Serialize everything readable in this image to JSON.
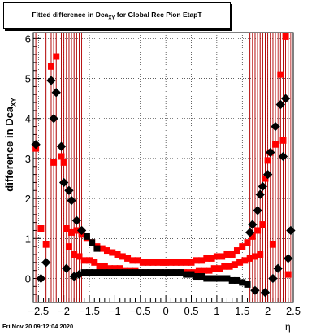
{
  "chart_data": {
    "type": "scatter",
    "title_main": "Fitted difference in Dca",
    "title_sub": "XY",
    "title_rest": " for Global Rec Pion EtapT",
    "xlabel": "η",
    "ylabel_main": "difference in Dca",
    "ylabel_sub": "XY",
    "xlim": [
      -2.6,
      2.5
    ],
    "ylim": [
      -0.6,
      6.15
    ],
    "x_ticks": [
      -2.5,
      -2,
      -1.5,
      -1,
      -0.5,
      0,
      0.5,
      1,
      1.5,
      2,
      2.5
    ],
    "x_tick_labels": [
      "−2.5",
      "−2",
      "−1.5",
      "−1",
      "−0.5",
      "0",
      "0.5",
      "1",
      "1.5",
      "2",
      "2.5"
    ],
    "y_ticks": [
      0,
      1,
      2,
      3,
      4,
      5,
      6
    ],
    "y_tick_labels": [
      "0",
      "1",
      "2",
      "3",
      "4",
      "5",
      "6"
    ],
    "grid": true,
    "series": [
      {
        "color": "#ff0000",
        "points": [
          [
            -2.55,
            3.25
          ],
          [
            -2.45,
            1.25
          ],
          [
            -2.35,
            0.85
          ],
          [
            -2.25,
            5.3
          ],
          [
            -2.2,
            2.9
          ],
          [
            -2.15,
            5.55
          ],
          [
            -2.05,
            3.05
          ],
          [
            -2.0,
            2.9
          ],
          [
            -1.95,
            1.25
          ],
          [
            -1.9,
            0.8
          ],
          [
            -1.85,
            1.15
          ],
          [
            -1.8,
            0.6
          ],
          [
            -1.75,
            1.2
          ],
          [
            -1.7,
            0.55
          ],
          [
            -1.65,
            1.1
          ],
          [
            -1.6,
            0.45
          ],
          [
            -1.55,
            1.0
          ],
          [
            -1.5,
            0.45
          ],
          [
            -1.45,
            0.9
          ],
          [
            -1.4,
            0.4
          ],
          [
            -1.35,
            0.8
          ],
          [
            -1.3,
            0.3
          ],
          [
            -1.25,
            0.75
          ],
          [
            -1.2,
            0.3
          ],
          [
            -1.15,
            0.7
          ],
          [
            -1.1,
            0.25
          ],
          [
            -1.05,
            0.65
          ],
          [
            -1.0,
            0.25
          ],
          [
            -0.95,
            0.6
          ],
          [
            -0.9,
            0.25
          ],
          [
            -0.85,
            0.55
          ],
          [
            -0.8,
            0.2
          ],
          [
            -0.75,
            0.5
          ],
          [
            -0.7,
            0.2
          ],
          [
            -0.65,
            0.45
          ],
          [
            -0.6,
            0.2
          ],
          [
            -0.55,
            0.45
          ],
          [
            -0.5,
            0.15
          ],
          [
            -0.45,
            0.4
          ],
          [
            -0.4,
            0.15
          ],
          [
            -0.35,
            0.4
          ],
          [
            -0.3,
            0.15
          ],
          [
            -0.25,
            0.4
          ],
          [
            -0.2,
            0.15
          ],
          [
            -0.15,
            0.4
          ],
          [
            -0.1,
            0.15
          ],
          [
            -0.05,
            0.4
          ],
          [
            0.0,
            0.4
          ],
          [
            0.05,
            0.15
          ],
          [
            0.1,
            0.4
          ],
          [
            0.15,
            0.15
          ],
          [
            0.2,
            0.4
          ],
          [
            0.25,
            0.15
          ],
          [
            0.3,
            0.4
          ],
          [
            0.35,
            0.15
          ],
          [
            0.4,
            0.4
          ],
          [
            0.45,
            0.15
          ],
          [
            0.5,
            0.4
          ],
          [
            0.55,
            0.15
          ],
          [
            0.6,
            0.45
          ],
          [
            0.65,
            0.2
          ],
          [
            0.7,
            0.45
          ],
          [
            0.75,
            0.2
          ],
          [
            0.8,
            0.5
          ],
          [
            0.85,
            0.2
          ],
          [
            0.9,
            0.5
          ],
          [
            0.95,
            0.25
          ],
          [
            1.0,
            0.55
          ],
          [
            1.05,
            0.25
          ],
          [
            1.1,
            0.55
          ],
          [
            1.15,
            0.3
          ],
          [
            1.2,
            0.6
          ],
          [
            1.25,
            0.3
          ],
          [
            1.3,
            0.6
          ],
          [
            1.35,
            0.35
          ],
          [
            1.4,
            0.7
          ],
          [
            1.45,
            0.4
          ],
          [
            1.5,
            0.8
          ],
          [
            1.55,
            0.45
          ],
          [
            1.6,
            0.9
          ],
          [
            1.65,
            0.5
          ],
          [
            1.7,
            1.05
          ],
          [
            1.75,
            0.55
          ],
          [
            1.8,
            1.2
          ],
          [
            1.85,
            0.6
          ],
          [
            1.9,
            1.35
          ],
          [
            1.95,
            2.5
          ],
          [
            2.0,
            2.95
          ],
          [
            2.05,
            3.15
          ],
          [
            2.1,
            0.85
          ],
          [
            2.15,
            3.35
          ],
          [
            2.25,
            5.1
          ],
          [
            2.3,
            3.45
          ],
          [
            2.35,
            6.05
          ],
          [
            2.4,
            0.1
          ]
        ]
      },
      {
        "color": "#000000",
        "points": [
          [
            -2.55,
            3.35
          ],
          [
            -2.45,
            0.0
          ],
          [
            -2.35,
            0.4
          ],
          [
            -2.25,
            4.95
          ],
          [
            -2.2,
            4.0
          ],
          [
            -2.15,
            4.65
          ],
          [
            -2.05,
            3.3
          ],
          [
            -2.0,
            2.4
          ],
          [
            -1.95,
            0.25
          ],
          [
            -1.9,
            2.2
          ],
          [
            -1.85,
            1.95
          ],
          [
            -1.8,
            0.05
          ],
          [
            -1.75,
            1.45
          ],
          [
            -1.7,
            0.1
          ],
          [
            -1.65,
            1.2
          ],
          [
            -1.6,
            0.15
          ],
          [
            -1.55,
            1.05
          ],
          [
            -1.5,
            0.15
          ],
          [
            -1.45,
            0.9
          ],
          [
            -1.4,
            0.15
          ],
          [
            -1.35,
            0.75
          ],
          [
            -1.3,
            0.15
          ],
          [
            -1.2,
            0.15
          ],
          [
            -1.1,
            0.15
          ],
          [
            -1.0,
            0.15
          ],
          [
            -0.9,
            0.15
          ],
          [
            -0.8,
            0.15
          ],
          [
            -0.7,
            0.15
          ],
          [
            -0.6,
            0.15
          ],
          [
            -0.5,
            0.15
          ],
          [
            -0.4,
            0.15
          ],
          [
            -0.3,
            0.15
          ],
          [
            -0.2,
            0.15
          ],
          [
            -0.1,
            0.15
          ],
          [
            0.0,
            0.15
          ],
          [
            0.1,
            0.15
          ],
          [
            0.2,
            0.15
          ],
          [
            0.3,
            0.15
          ],
          [
            0.4,
            0.1
          ],
          [
            0.5,
            0.1
          ],
          [
            0.6,
            0.05
          ],
          [
            0.7,
            0.05
          ],
          [
            0.8,
            0.0
          ],
          [
            0.9,
            0.0
          ],
          [
            1.0,
            0.0
          ],
          [
            1.1,
            0.0
          ],
          [
            1.2,
            0.0
          ],
          [
            1.3,
            -0.05
          ],
          [
            1.4,
            -0.05
          ],
          [
            1.5,
            -0.1
          ],
          [
            1.6,
            -0.15
          ],
          [
            1.65,
            1.15
          ],
          [
            1.7,
            1.35
          ],
          [
            1.75,
            -0.3
          ],
          [
            1.8,
            1.7
          ],
          [
            1.85,
            2.1
          ],
          [
            1.9,
            2.3
          ],
          [
            1.95,
            -0.35
          ],
          [
            2.0,
            2.6
          ],
          [
            2.05,
            3.15
          ],
          [
            2.1,
            0.0
          ],
          [
            2.15,
            3.8
          ],
          [
            2.2,
            0.25
          ],
          [
            2.25,
            4.35
          ],
          [
            2.3,
            3.05
          ],
          [
            2.35,
            4.5
          ],
          [
            2.4,
            0.5
          ],
          [
            2.45,
            1.2
          ]
        ]
      }
    ],
    "error_bars_note": "red vertical error bars on points with |eta| > 1.6"
  },
  "footer": {
    "timestamp": "Fri Nov 20 09:12:04 2020"
  }
}
